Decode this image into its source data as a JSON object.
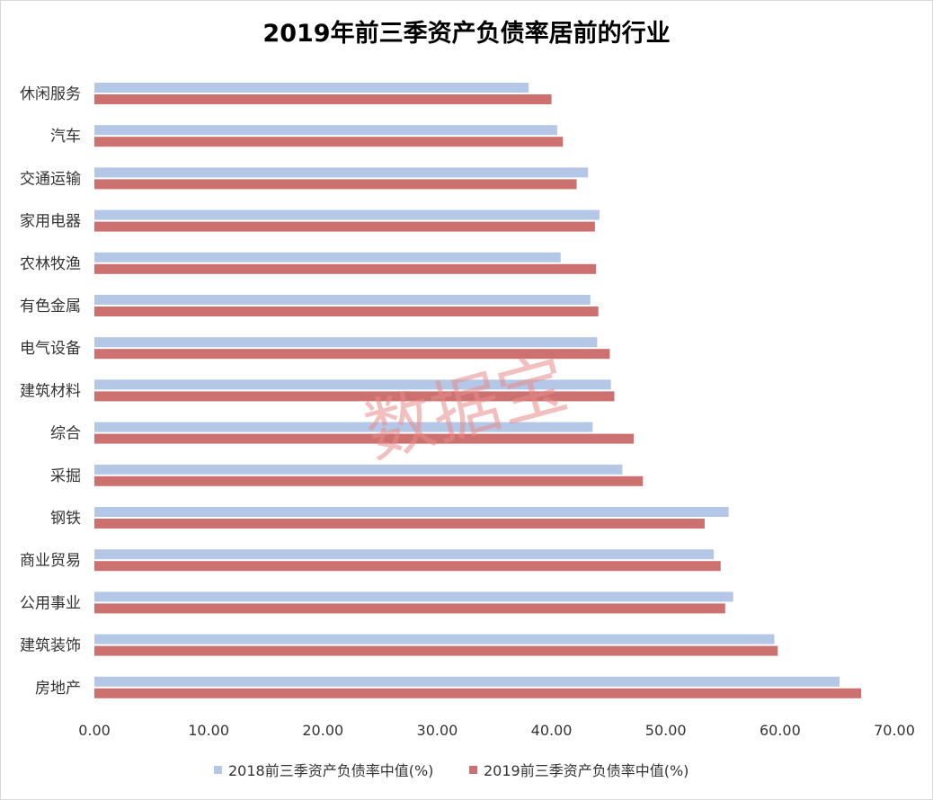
{
  "chart_data": {
    "type": "bar",
    "orientation": "horizontal",
    "title": "2019年前三季资产负债率居前的行业",
    "categories": [
      "休闲服务",
      "汽车",
      "交通运输",
      "家用电器",
      "农林牧渔",
      "有色金属",
      "电气设备",
      "建筑材料",
      "综合",
      "采掘",
      "钢铁",
      "商业贸易",
      "公用事业",
      "建筑装饰",
      "房地产"
    ],
    "series": [
      {
        "name": "2018前三季资产负债率中值(%)",
        "color": "#b4c7e7",
        "values": [
          38.0,
          40.5,
          43.2,
          44.2,
          40.8,
          43.4,
          44.0,
          45.2,
          43.6,
          46.2,
          55.5,
          54.2,
          55.9,
          59.5,
          65.2
        ]
      },
      {
        "name": "2019前三季资产负债率中值(%)",
        "color": "#cd7070",
        "values": [
          40.0,
          41.0,
          42.2,
          43.8,
          43.9,
          44.1,
          45.1,
          45.5,
          47.2,
          48.0,
          53.4,
          54.8,
          55.2,
          59.8,
          67.1
        ]
      }
    ],
    "xlim": [
      0,
      70
    ],
    "xticks": [
      "0.00",
      "10.00",
      "20.00",
      "30.00",
      "40.00",
      "50.00",
      "60.00",
      "70.00"
    ],
    "grid": false,
    "legend_position": "bottom"
  },
  "watermark": "数据宝"
}
